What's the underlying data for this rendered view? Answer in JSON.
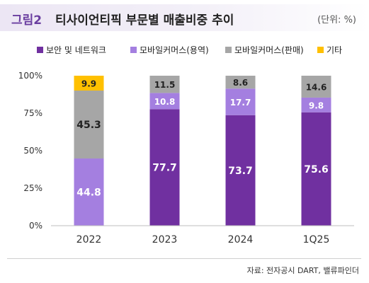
{
  "header": {
    "figure_number": "그림2",
    "title": "티사이언티픽 부문별 매출비중 추이",
    "unit": "(단위: %)"
  },
  "colors": {
    "security": "#7030a0",
    "mobile_service": "#a47fe0",
    "mobile_sales": "#a6a6a6",
    "other": "#ffc000"
  },
  "chart_data": {
    "type": "bar",
    "stacked": true,
    "categories": [
      "2022",
      "2023",
      "2024",
      "1Q25"
    ],
    "series": [
      {
        "name": "보안 및 네트워크",
        "values": [
          0,
          77.7,
          73.7,
          75.6
        ],
        "labels": [
          "",
          "77.7",
          "73.7",
          "75.6"
        ],
        "color": "#7030a0"
      },
      {
        "name": "모바일커머스(용역)",
        "values": [
          44.8,
          10.8,
          17.7,
          9.8
        ],
        "labels": [
          "44.8",
          "10.8",
          "17.7",
          "9.8"
        ],
        "color": "#a47fe0"
      },
      {
        "name": "모바일커머스(판매)",
        "values": [
          45.3,
          11.5,
          8.6,
          14.6
        ],
        "labels": [
          "45.3",
          "11.5",
          "8.6",
          "14.6"
        ],
        "color": "#a6a6a6"
      },
      {
        "name": "기타",
        "values": [
          9.9,
          0,
          0,
          0
        ],
        "labels": [
          "9.9",
          "",
          "",
          ""
        ],
        "color": "#ffc000"
      }
    ],
    "ylim": [
      0,
      100
    ],
    "yticks": [
      0,
      25,
      50,
      75,
      100
    ],
    "ytick_labels": [
      "0%",
      "25%",
      "50%",
      "75%",
      "100%"
    ],
    "legend_position": "top",
    "grid": false
  },
  "source": "자료: 전자공시 DART, 밸류파인더"
}
